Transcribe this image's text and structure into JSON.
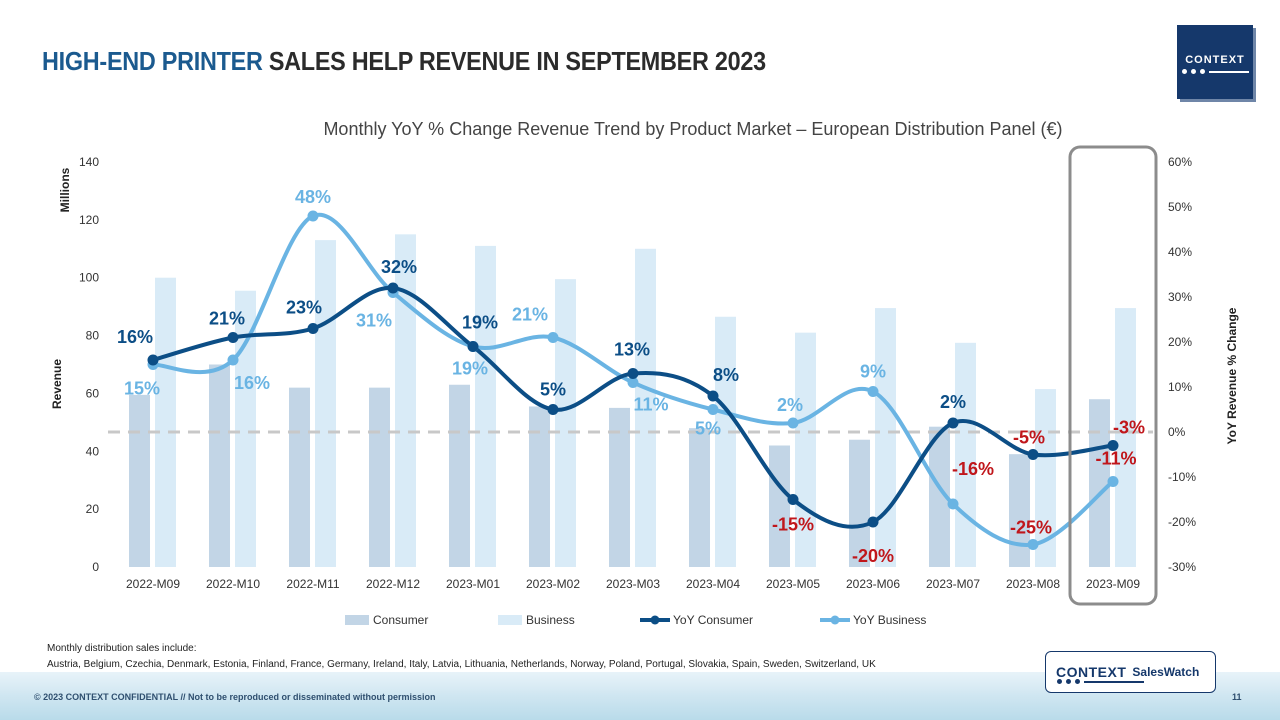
{
  "slide": {
    "title_highlight": "HIGH-END PRINTER",
    "title_rest": "SALES HELP REVENUE IN SEPTEMBER 2023",
    "logo_text": "CONTEXT",
    "footnote_head": "Monthly distribution  sales include:",
    "footnote_countries": "Austria,  Belgium,  Czechia,  Denmark,  Estonia,  Finland,  France, Germany,  Ireland, Italy,  Latvia,  Lithuania,  Netherlands,  Norway, Poland,  Portugal,  Slovakia,  Spain,  Sweden, Switzerland,  UK",
    "copyright": "© 2023 CONTEXT CONFIDENTIAL // Not to be reproduced or disseminated without permission",
    "page_number": "11",
    "badge_brand": "CONTEXT",
    "badge_product": "SalesWatch"
  },
  "chart_data": {
    "type": "bar",
    "title": "Monthly YoY % Change Revenue Trend by Product Market – European Distribution Panel (€)",
    "categories": [
      "2022-M09",
      "2022-M10",
      "2022-M11",
      "2022-M12",
      "2023-M01",
      "2023-M02",
      "2023-M03",
      "2023-M04",
      "2023-M05",
      "2023-M06",
      "2023-M07",
      "2023-M08",
      "2023-M09"
    ],
    "ylabel": "Revenue",
    "y_unit_label": "Millions",
    "y2label": "YoY Revenue % Change",
    "ylim": [
      0,
      140
    ],
    "yticks": [
      0,
      20,
      40,
      60,
      80,
      100,
      120,
      140
    ],
    "y2lim": [
      -30,
      60
    ],
    "y2ticks": [
      -30,
      -20,
      -10,
      0,
      10,
      20,
      30,
      40,
      50,
      60
    ],
    "series": [
      {
        "name": "Consumer",
        "kind": "bar",
        "axis": "left",
        "color": "#c2d5e6",
        "values": [
          59.5,
          70,
          62,
          62,
          63,
          55.5,
          55,
          48,
          42,
          44,
          48.5,
          39,
          58
        ]
      },
      {
        "name": "Business",
        "kind": "bar",
        "axis": "left",
        "color": "#d9ebf7",
        "values": [
          100,
          95.5,
          113,
          115,
          111,
          99.5,
          110,
          86.5,
          81,
          89.5,
          77.5,
          61.5,
          89.5
        ]
      },
      {
        "name": "YoY Consumer",
        "kind": "line",
        "axis": "right",
        "color": "#0c4e86",
        "values": [
          16,
          21,
          23,
          32,
          19,
          5,
          13,
          8,
          -15,
          -20,
          2,
          -5,
          -3
        ]
      },
      {
        "name": "YoY Business",
        "kind": "line",
        "axis": "right",
        "color": "#6ab4e3",
        "values": [
          15,
          16,
          48,
          31,
          19,
          21,
          11,
          5,
          2,
          9,
          -16,
          -25,
          -11
        ]
      }
    ],
    "data_labels": {
      "consumer": [
        "16%",
        "21%",
        "23%",
        "32%",
        "19%",
        "5%",
        "13%",
        "8%",
        "-15%",
        "-20%",
        "2%",
        "-5%",
        "-3%"
      ],
      "business": [
        "15%",
        "16%",
        "48%",
        "31%",
        "19%",
        "21%",
        "11%",
        "5%",
        "2%",
        "9%",
        "-16%",
        "-25%",
        "-11%"
      ]
    },
    "negative_label_color": "#c0161b",
    "reference_line": {
      "value": 0,
      "axis": "right",
      "style": "dashed"
    },
    "highlight_category": "2023-M09",
    "legend": "bottom"
  }
}
